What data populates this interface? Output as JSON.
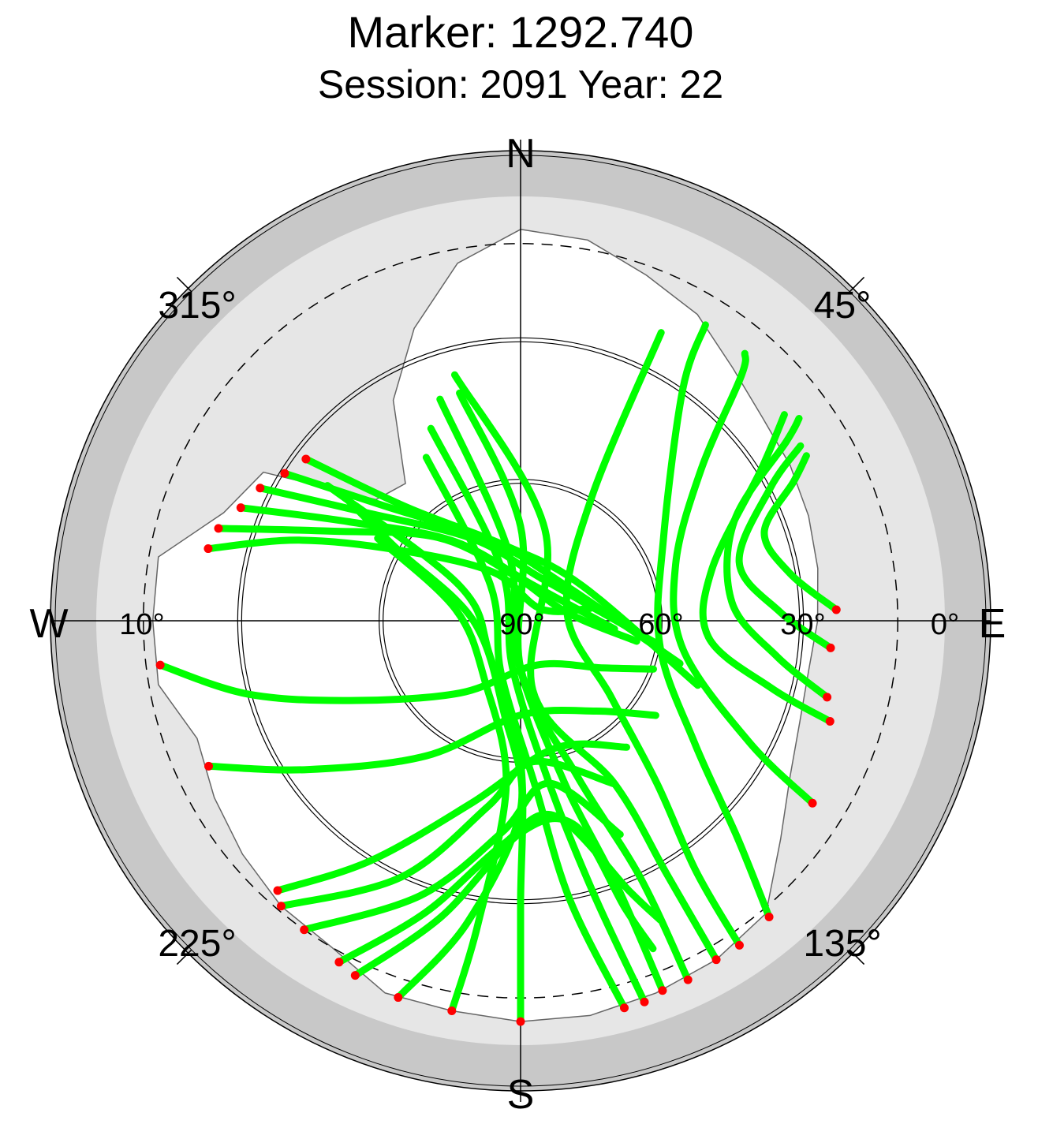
{
  "chart_data": {
    "type": "scatter",
    "projection": "polar",
    "title": "Marker: 1292.740",
    "subtitle": "Session: 2091 Year: 22",
    "compass": {
      "north": "N",
      "east": "E",
      "south": "S",
      "west": "W"
    },
    "azimuth_labels": [
      "315°",
      "45°",
      "135°",
      "225°"
    ],
    "elevation_labels": [
      "10°",
      "90°",
      "60°",
      "30°",
      "0°"
    ],
    "elevation_range": [
      0,
      90
    ],
    "elevation_circles": [
      0,
      30,
      60
    ],
    "elevation_mask_deg": 10,
    "colors": {
      "outer_ring": "#c8c8c8",
      "masked_zone": "#e6e6e6",
      "visible_zone": "#ffffff",
      "tracked": "#00ff00",
      "endpoint": "#ff0000"
    },
    "visibility_mask": [
      {
        "az": 0,
        "el": 7
      },
      {
        "az": 10,
        "el": 8
      },
      {
        "az": 20,
        "el": 12
      },
      {
        "az": 30,
        "el": 15
      },
      {
        "az": 40,
        "el": 20
      },
      {
        "az": 50,
        "el": 23
      },
      {
        "az": 60,
        "el": 24
      },
      {
        "az": 70,
        "el": 25
      },
      {
        "az": 80,
        "el": 26
      },
      {
        "az": 90,
        "el": 27
      },
      {
        "az": 100,
        "el": 28
      },
      {
        "az": 110,
        "el": 27
      },
      {
        "az": 120,
        "el": 24
      },
      {
        "az": 130,
        "el": 18
      },
      {
        "az": 140,
        "el": 9
      },
      {
        "az": 150,
        "el": 7
      },
      {
        "az": 160,
        "el": 6
      },
      {
        "az": 170,
        "el": 5
      },
      {
        "az": 180,
        "el": 5
      },
      {
        "az": 190,
        "el": 6
      },
      {
        "az": 200,
        "el": 6
      },
      {
        "az": 210,
        "el": 10
      },
      {
        "az": 220,
        "el": 11
      },
      {
        "az": 230,
        "el": 13
      },
      {
        "az": 240,
        "el": 15
      },
      {
        "az": 250,
        "el": 17
      },
      {
        "az": 260,
        "el": 12
      },
      {
        "az": 270,
        "el": 12
      },
      {
        "az": 280,
        "el": 12
      },
      {
        "az": 290,
        "el": 23
      },
      {
        "az": 300,
        "el": 27
      },
      {
        "az": 310,
        "el": 50
      },
      {
        "az": 320,
        "el": 52
      },
      {
        "az": 330,
        "el": 36
      },
      {
        "az": 340,
        "el": 24
      },
      {
        "az": 350,
        "el": 13
      },
      {
        "az": 360,
        "el": 7
      }
    ],
    "series": [
      {
        "name": "",
        "color": "#00ff00",
        "tracks": [
          [
            [
              283,
              22
            ],
            [
              290,
              40
            ],
            [
              300,
              60
            ],
            [
              330,
              78
            ],
            [
              60,
              85
            ],
            [
              80,
              75
            ]
          ],
          [
            [
              287,
              23
            ],
            [
              295,
              45
            ],
            [
              315,
              65
            ],
            [
              350,
              80
            ],
            [
              80,
              80
            ],
            [
              100,
              65
            ]
          ],
          [
            [
              292,
              26
            ],
            [
              300,
              48
            ],
            [
              320,
              68
            ],
            [
              20,
              82
            ],
            [
              95,
              70
            ]
          ],
          [
            [
              297,
              28
            ],
            [
              305,
              50
            ],
            [
              330,
              70
            ],
            [
              30,
              80
            ],
            [
              100,
              60
            ]
          ],
          [
            [
              302,
              31
            ],
            [
              310,
              52
            ],
            [
              340,
              72
            ],
            [
              50,
              78
            ],
            [
              105,
              55
            ]
          ],
          [
            [
              307,
              33
            ],
            [
              315,
              56
            ],
            [
              350,
              74
            ],
            [
              60,
              75
            ],
            [
              110,
              50
            ]
          ],
          [
            [
              263,
              13
            ],
            [
              255,
              30
            ],
            [
              245,
              50
            ],
            [
              220,
              70
            ],
            [
              160,
              80
            ],
            [
              120,
              70
            ],
            [
              110,
              60
            ]
          ],
          [
            [
              245,
              17
            ],
            [
              235,
              35
            ],
            [
              215,
              55
            ],
            [
              180,
              70
            ],
            [
              140,
              65
            ],
            [
              125,
              55
            ]
          ],
          [
            [
              222,
              13
            ],
            [
              212,
              30
            ],
            [
              195,
              50
            ],
            [
              165,
              62
            ],
            [
              140,
              55
            ]
          ],
          [
            [
              220,
              11
            ],
            [
              205,
              30
            ],
            [
              190,
              50
            ],
            [
              175,
              60
            ],
            [
              150,
              50
            ]
          ],
          [
            [
              215,
              10
            ],
            [
              200,
              28
            ],
            [
              185,
              45
            ],
            [
              170,
              55
            ],
            [
              155,
              40
            ]
          ],
          [
            [
              208,
              8
            ],
            [
              198,
              25
            ],
            [
              185,
              42
            ],
            [
              170,
              48
            ],
            [
              158,
              28
            ],
            [
              155,
              20
            ]
          ],
          [
            [
              205,
              7
            ],
            [
              195,
              25
            ],
            [
              180,
              45
            ],
            [
              165,
              45
            ],
            [
              160,
              25
            ],
            [
              158,
              15
            ]
          ],
          [
            [
              198,
              6
            ],
            [
              190,
              25
            ],
            [
              180,
              50
            ],
            [
              190,
              70
            ],
            [
              270,
              80
            ],
            [
              300,
              60
            ],
            [
              305,
              45
            ]
          ],
          [
            [
              190,
              6
            ],
            [
              188,
              25
            ],
            [
              185,
              55
            ],
            [
              210,
              75
            ],
            [
              280,
              76
            ],
            [
              300,
              55
            ]
          ],
          [
            [
              180,
              5
            ],
            [
              180,
              30
            ],
            [
              180,
              60
            ],
            [
              220,
              80
            ],
            [
              300,
              75
            ],
            [
              305,
              40
            ]
          ],
          [
            [
              165,
              5
            ],
            [
              170,
              30
            ],
            [
              175,
              55
            ],
            [
              200,
              78
            ],
            [
              320,
              80
            ],
            [
              330,
              50
            ]
          ],
          [
            [
              162,
              5
            ],
            [
              165,
              30
            ],
            [
              170,
              55
            ],
            [
              190,
              80
            ],
            [
              340,
              78
            ],
            [
              335,
              45
            ]
          ],
          [
            [
              159,
              6
            ],
            [
              160,
              30
            ],
            [
              165,
              55
            ],
            [
              185,
              82
            ],
            [
              350,
              75
            ],
            [
              340,
              40
            ]
          ],
          [
            [
              155,
              6
            ],
            [
              155,
              30
            ],
            [
              160,
              55
            ],
            [
              180,
              80
            ],
            [
              0,
              70
            ],
            [
              345,
              40
            ]
          ],
          [
            [
              150,
              7
            ],
            [
              150,
              28
            ],
            [
              150,
              50
            ],
            [
              170,
              75
            ],
            [
              15,
              70
            ],
            [
              345,
              36
            ]
          ],
          [
            [
              146,
              7
            ],
            [
              145,
              25
            ],
            [
              140,
              45
            ],
            [
              130,
              65
            ],
            [
              80,
              80
            ],
            [
              30,
              60
            ],
            [
              26,
              22
            ]
          ],
          [
            [
              140,
              8
            ],
            [
              135,
              25
            ],
            [
              125,
              45
            ],
            [
              100,
              60
            ],
            [
              60,
              55
            ],
            [
              35,
              30
            ],
            [
              32,
              16
            ]
          ],
          [
            [
              122,
              17
            ],
            [
              118,
              35
            ],
            [
              100,
              55
            ],
            [
              70,
              55
            ],
            [
              50,
              40
            ],
            [
              42,
              20
            ],
            [
              40,
              16
            ]
          ],
          [
            [
              108,
              21
            ],
            [
              105,
              35
            ],
            [
              95,
              50
            ],
            [
              75,
              48
            ],
            [
              58,
              30
            ],
            [
              52,
              19
            ]
          ],
          [
            [
              104,
              23
            ],
            [
              98,
              35
            ],
            [
              85,
              45
            ],
            [
              65,
              40
            ],
            [
              56,
              22
            ],
            [
              54,
              17
            ]
          ],
          [
            [
              95,
              24
            ],
            [
              88,
              35
            ],
            [
              75,
              42
            ],
            [
              62,
              30
            ],
            [
              58,
              20
            ]
          ],
          [
            [
              88,
              23
            ],
            [
              80,
              32
            ],
            [
              70,
              35
            ],
            [
              63,
              25
            ],
            [
              60,
              20
            ]
          ]
        ]
      },
      {
        "name": "",
        "color": "#ff0000",
        "endpoint_style": "dot"
      }
    ]
  }
}
